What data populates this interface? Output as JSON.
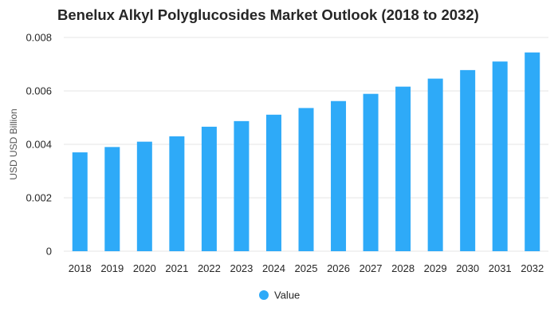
{
  "chart_data": {
    "type": "bar",
    "title": "Benelux Alkyl Polyglucosides Market Outlook (2018 to 2032)",
    "xlabel": "",
    "ylabel": "USD USD Billion",
    "categories": [
      "2018",
      "2019",
      "2020",
      "2021",
      "2022",
      "2023",
      "2024",
      "2025",
      "2026",
      "2027",
      "2028",
      "2029",
      "2030",
      "2031",
      "2032"
    ],
    "series": [
      {
        "name": "Value",
        "color": "#2eaaf8",
        "values": [
          0.0037,
          0.0039,
          0.0041,
          0.0043,
          0.00466,
          0.00487,
          0.00511,
          0.00536,
          0.00562,
          0.00589,
          0.00616,
          0.00646,
          0.00678,
          0.0071,
          0.00744
        ]
      }
    ],
    "ylim": [
      0,
      0.008
    ],
    "yticks": [
      0,
      0.002,
      0.004,
      0.006,
      0.008
    ],
    "ytick_labels": [
      "0",
      "0.002",
      "0.004",
      "0.006",
      "0.008"
    ],
    "grid": true,
    "legend_position": "bottom"
  }
}
